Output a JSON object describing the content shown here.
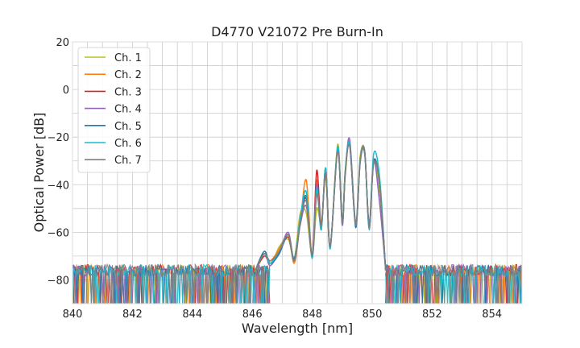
{
  "chart_data": {
    "type": "line",
    "title": "D4770 V21072 Pre Burn-In",
    "xlabel": "Wavelength [nm]",
    "ylabel": "Optical Power [dB]",
    "xlim": [
      840,
      855
    ],
    "ylim": [
      -90,
      20
    ],
    "xticks": [
      840,
      842,
      844,
      846,
      848,
      850,
      852,
      854
    ],
    "yticks": [
      -80,
      -60,
      -40,
      -20,
      0,
      20
    ],
    "xtick_labels": [
      "840",
      "842",
      "844",
      "846",
      "848",
      "850",
      "852",
      "854"
    ],
    "ytick_labels": [
      "−80",
      "−60",
      "−40",
      "−20",
      "0",
      "20"
    ],
    "grid": true,
    "legend": "top-left",
    "noise_floor": -76,
    "spectrum_shape": {
      "x": [
        846.1,
        846.4,
        846.6,
        846.9,
        847.2,
        847.4,
        847.6,
        847.8,
        848.0,
        848.15,
        848.3,
        848.45,
        848.6,
        848.85,
        849.0,
        849.1,
        849.25,
        849.45,
        849.6,
        849.75,
        849.9,
        850.05,
        850.25,
        850.45
      ],
      "y": [
        -76,
        -69,
        -73,
        -68,
        -61,
        -72,
        -55,
        -44,
        -70,
        -38,
        -58,
        -33,
        -66,
        -25,
        -56,
        -35,
        -23,
        -57,
        -30,
        -26,
        -58,
        -30,
        -40,
        -76
      ]
    },
    "series": [
      {
        "name": "Ch. 1",
        "color": "#bcbd22",
        "offsets": [
          0,
          1,
          -1,
          2,
          -2,
          1,
          3,
          -8,
          0,
          -12,
          2,
          -4,
          0,
          2,
          1,
          -2,
          1,
          1,
          2,
          -1,
          1,
          0,
          -3,
          0
        ]
      },
      {
        "name": "Ch. 2",
        "color": "#ff7f0e",
        "offsets": [
          0,
          0,
          1,
          1,
          0,
          -1,
          -1,
          6,
          0,
          0,
          -1,
          0,
          0,
          1,
          0,
          0,
          0,
          0,
          1,
          0,
          0,
          0,
          0,
          0
        ]
      },
      {
        "name": "Ch. 3",
        "color": "#d62728",
        "offsets": [
          0,
          -1,
          0,
          0,
          -1,
          0,
          0,
          -2,
          0,
          4,
          1,
          -2,
          0,
          0,
          0,
          0,
          0,
          0,
          0,
          0,
          0,
          0,
          0,
          0
        ]
      },
      {
        "name": "Ch. 4",
        "color": "#9467bd",
        "offsets": [
          0,
          0,
          -1,
          0,
          1,
          0,
          -2,
          -5,
          1,
          -2,
          0,
          -1,
          0,
          0,
          -1,
          0,
          2,
          1,
          0,
          -1,
          2,
          0,
          -8,
          0
        ]
      },
      {
        "name": "Ch. 5",
        "color": "#1f77b4",
        "offsets": [
          0,
          1,
          0,
          -1,
          0,
          1,
          0,
          -1,
          0,
          -4,
          0,
          0,
          0,
          0,
          0,
          0,
          0,
          -1,
          0,
          0,
          0,
          0,
          0,
          0
        ]
      },
      {
        "name": "Ch. 6",
        "color": "#17becf",
        "offsets": [
          0,
          0,
          0,
          0,
          0,
          0,
          1,
          1,
          -1,
          -4,
          -1,
          0,
          -1,
          1,
          0,
          1,
          0,
          0,
          0,
          0,
          -1,
          3,
          3,
          0
        ]
      },
      {
        "name": "Ch. 7",
        "color": "#7f7f7f",
        "offsets": [
          0,
          0,
          1,
          0,
          0,
          0,
          -1,
          -3,
          0,
          -6,
          1,
          -2,
          0,
          -1,
          0,
          0,
          -1,
          0,
          -1,
          0,
          0,
          -1,
          0,
          0
        ]
      }
    ]
  }
}
